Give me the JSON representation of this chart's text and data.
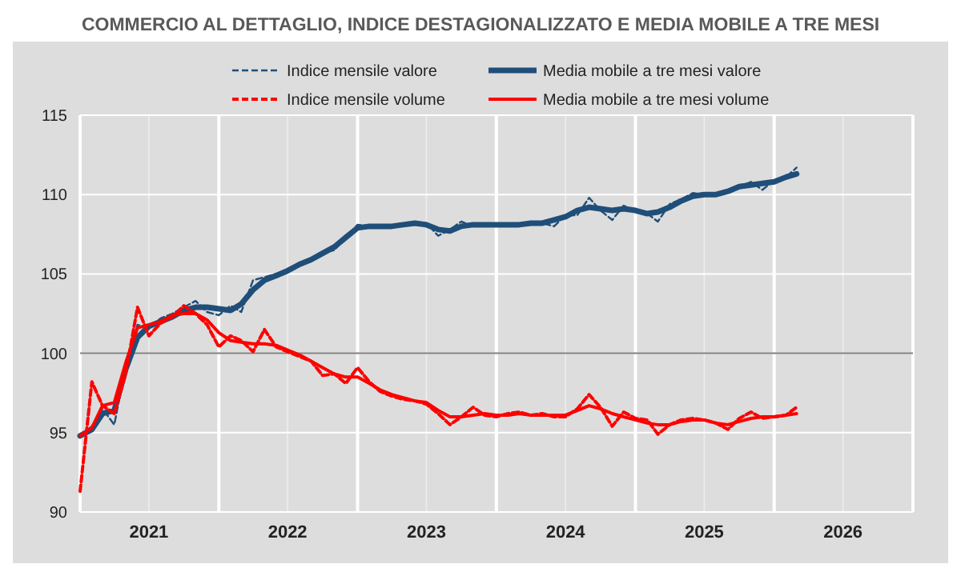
{
  "chart_data": {
    "type": "line",
    "title": "COMMERCIO AL DETTAGLIO, INDICE DESTAGIONALIZZATO E MEDIA MOBILE A TRE MESI",
    "x": [
      "2021-01",
      "2021-02",
      "2021-03",
      "2021-04",
      "2021-05",
      "2021-06",
      "2021-07",
      "2021-08",
      "2021-09",
      "2021-10",
      "2021-11",
      "2021-12",
      "2022-01",
      "2022-02",
      "2022-03",
      "2022-04",
      "2022-05",
      "2022-06",
      "2022-07",
      "2022-08",
      "2022-09",
      "2022-10",
      "2022-11",
      "2022-12",
      "2023-01",
      "2023-02",
      "2023-03",
      "2023-04",
      "2023-05",
      "2023-06",
      "2023-07",
      "2023-08",
      "2023-09",
      "2023-10",
      "2023-11",
      "2023-12",
      "2024-01",
      "2024-02",
      "2024-03",
      "2024-04",
      "2024-05",
      "2024-06",
      "2024-07",
      "2024-08",
      "2024-09",
      "2024-10",
      "2024-11",
      "2024-12",
      "2025-01",
      "2025-02",
      "2025-03",
      "2025-04",
      "2025-05",
      "2025-06",
      "2025-07",
      "2025-08",
      "2025-09",
      "2025-10",
      "2025-11",
      "2025-12",
      "2026-01",
      "2026-02",
      "2026-03"
    ],
    "series": [
      {
        "name": "Indice mensile valore",
        "color": "#1f4e79",
        "line_style": "dashed",
        "values": [
          94.8,
          95.4,
          96.5,
          95.5,
          99.2,
          101.8,
          101.6,
          102.2,
          102.5,
          102.9,
          103.3,
          102.6,
          102.4,
          103.0,
          102.6,
          104.6,
          104.8,
          105.0,
          105.3,
          105.6,
          106.0,
          106.3,
          106.5,
          107.3,
          108.1,
          108.0,
          108.0,
          107.9,
          108.1,
          108.2,
          108.2,
          107.4,
          107.8,
          108.3,
          108.0,
          108.1,
          108.0,
          108.1,
          108.0,
          108.2,
          108.2,
          108.0,
          108.7,
          108.7,
          109.8,
          109.0,
          108.4,
          109.3,
          109.0,
          108.8,
          108.3,
          109.4,
          109.7,
          110.1,
          110.0,
          110.0,
          110.1,
          110.5,
          110.8,
          110.3,
          110.9,
          111.1,
          111.7
        ]
      },
      {
        "name": "Media mobile a tre mesi valore",
        "color": "#1f4e79",
        "line_style": "solid",
        "values": [
          94.8,
          95.2,
          96.2,
          96.4,
          99.0,
          101.0,
          101.7,
          102.0,
          102.3,
          102.7,
          102.9,
          102.9,
          102.8,
          102.7,
          103.1,
          104.0,
          104.6,
          104.9,
          105.2,
          105.6,
          105.9,
          106.3,
          106.7,
          107.3,
          107.9,
          108.0,
          108.0,
          108.0,
          108.1,
          108.2,
          108.1,
          107.8,
          107.7,
          108.0,
          108.1,
          108.1,
          108.1,
          108.1,
          108.1,
          108.2,
          108.2,
          108.4,
          108.6,
          109.0,
          109.2,
          109.1,
          109.0,
          109.1,
          109.0,
          108.8,
          108.9,
          109.2,
          109.6,
          109.9,
          110.0,
          110.0,
          110.2,
          110.5,
          110.6,
          110.7,
          110.8,
          111.1,
          111.3
        ]
      },
      {
        "name": "Indice mensile volume",
        "color": "#ff0000",
        "line_style": "dashed",
        "values": [
          91.3,
          98.2,
          96.7,
          96.2,
          98.7,
          102.9,
          101.1,
          101.9,
          102.3,
          103.0,
          102.5,
          101.8,
          100.4,
          101.1,
          100.8,
          100.1,
          101.5,
          100.4,
          100.1,
          99.8,
          99.5,
          98.6,
          98.7,
          98.1,
          99.1,
          98.2,
          97.6,
          97.3,
          97.1,
          97.0,
          96.8,
          96.2,
          95.5,
          96.0,
          96.6,
          96.1,
          96.0,
          96.2,
          96.3,
          96.1,
          96.2,
          96.0,
          96.0,
          96.5,
          97.4,
          96.6,
          95.4,
          96.3,
          95.9,
          95.8,
          94.9,
          95.5,
          95.8,
          95.9,
          95.8,
          95.6,
          95.2,
          95.9,
          96.3,
          95.9,
          96.0,
          96.1,
          96.6
        ]
      },
      {
        "name": "Media mobile a tre mesi volume",
        "color": "#ff0000",
        "line_style": "solid",
        "values": [
          94.8,
          95.3,
          96.7,
          96.9,
          99.4,
          101.6,
          101.8,
          102.0,
          102.4,
          102.5,
          102.5,
          102.1,
          101.3,
          100.8,
          100.7,
          100.6,
          100.6,
          100.5,
          100.2,
          99.9,
          99.5,
          99.1,
          98.7,
          98.5,
          98.5,
          98.1,
          97.7,
          97.4,
          97.2,
          97.0,
          96.9,
          96.4,
          96.0,
          96.0,
          96.1,
          96.2,
          96.1,
          96.1,
          96.2,
          96.1,
          96.1,
          96.1,
          96.1,
          96.4,
          96.7,
          96.5,
          96.2,
          96.0,
          95.8,
          95.6,
          95.5,
          95.5,
          95.7,
          95.8,
          95.8,
          95.6,
          95.5,
          95.7,
          95.9,
          96.0,
          96.0,
          96.1,
          96.2
        ]
      }
    ],
    "xlim": [
      "2021-01-01",
      "2027-01-01"
    ],
    "xticks": [
      {
        "value": "2021-01-01",
        "label": null
      },
      {
        "value": "2021-07-01",
        "label": "2021"
      },
      {
        "value": "2022-01-01",
        "label": null
      },
      {
        "value": "2022-07-01",
        "label": "2022"
      },
      {
        "value": "2023-01-01",
        "label": null
      },
      {
        "value": "2023-07-01",
        "label": "2023"
      },
      {
        "value": "2024-01-01",
        "label": null
      },
      {
        "value": "2024-07-01",
        "label": "2024"
      },
      {
        "value": "2025-01-01",
        "label": null
      },
      {
        "value": "2025-07-01",
        "label": "2025"
      },
      {
        "value": "2026-01-01",
        "label": null
      },
      {
        "value": "2026-07-01",
        "label": "2026"
      },
      {
        "value": "2027-01-01",
        "label": null
      }
    ],
    "ylim": [
      90,
      115
    ],
    "yticks": [
      90,
      95,
      100,
      105,
      110,
      115
    ],
    "ref_lines": [
      {
        "axis": "y",
        "value": 100,
        "color": "#808080"
      }
    ],
    "grid": true,
    "legend": "top"
  }
}
